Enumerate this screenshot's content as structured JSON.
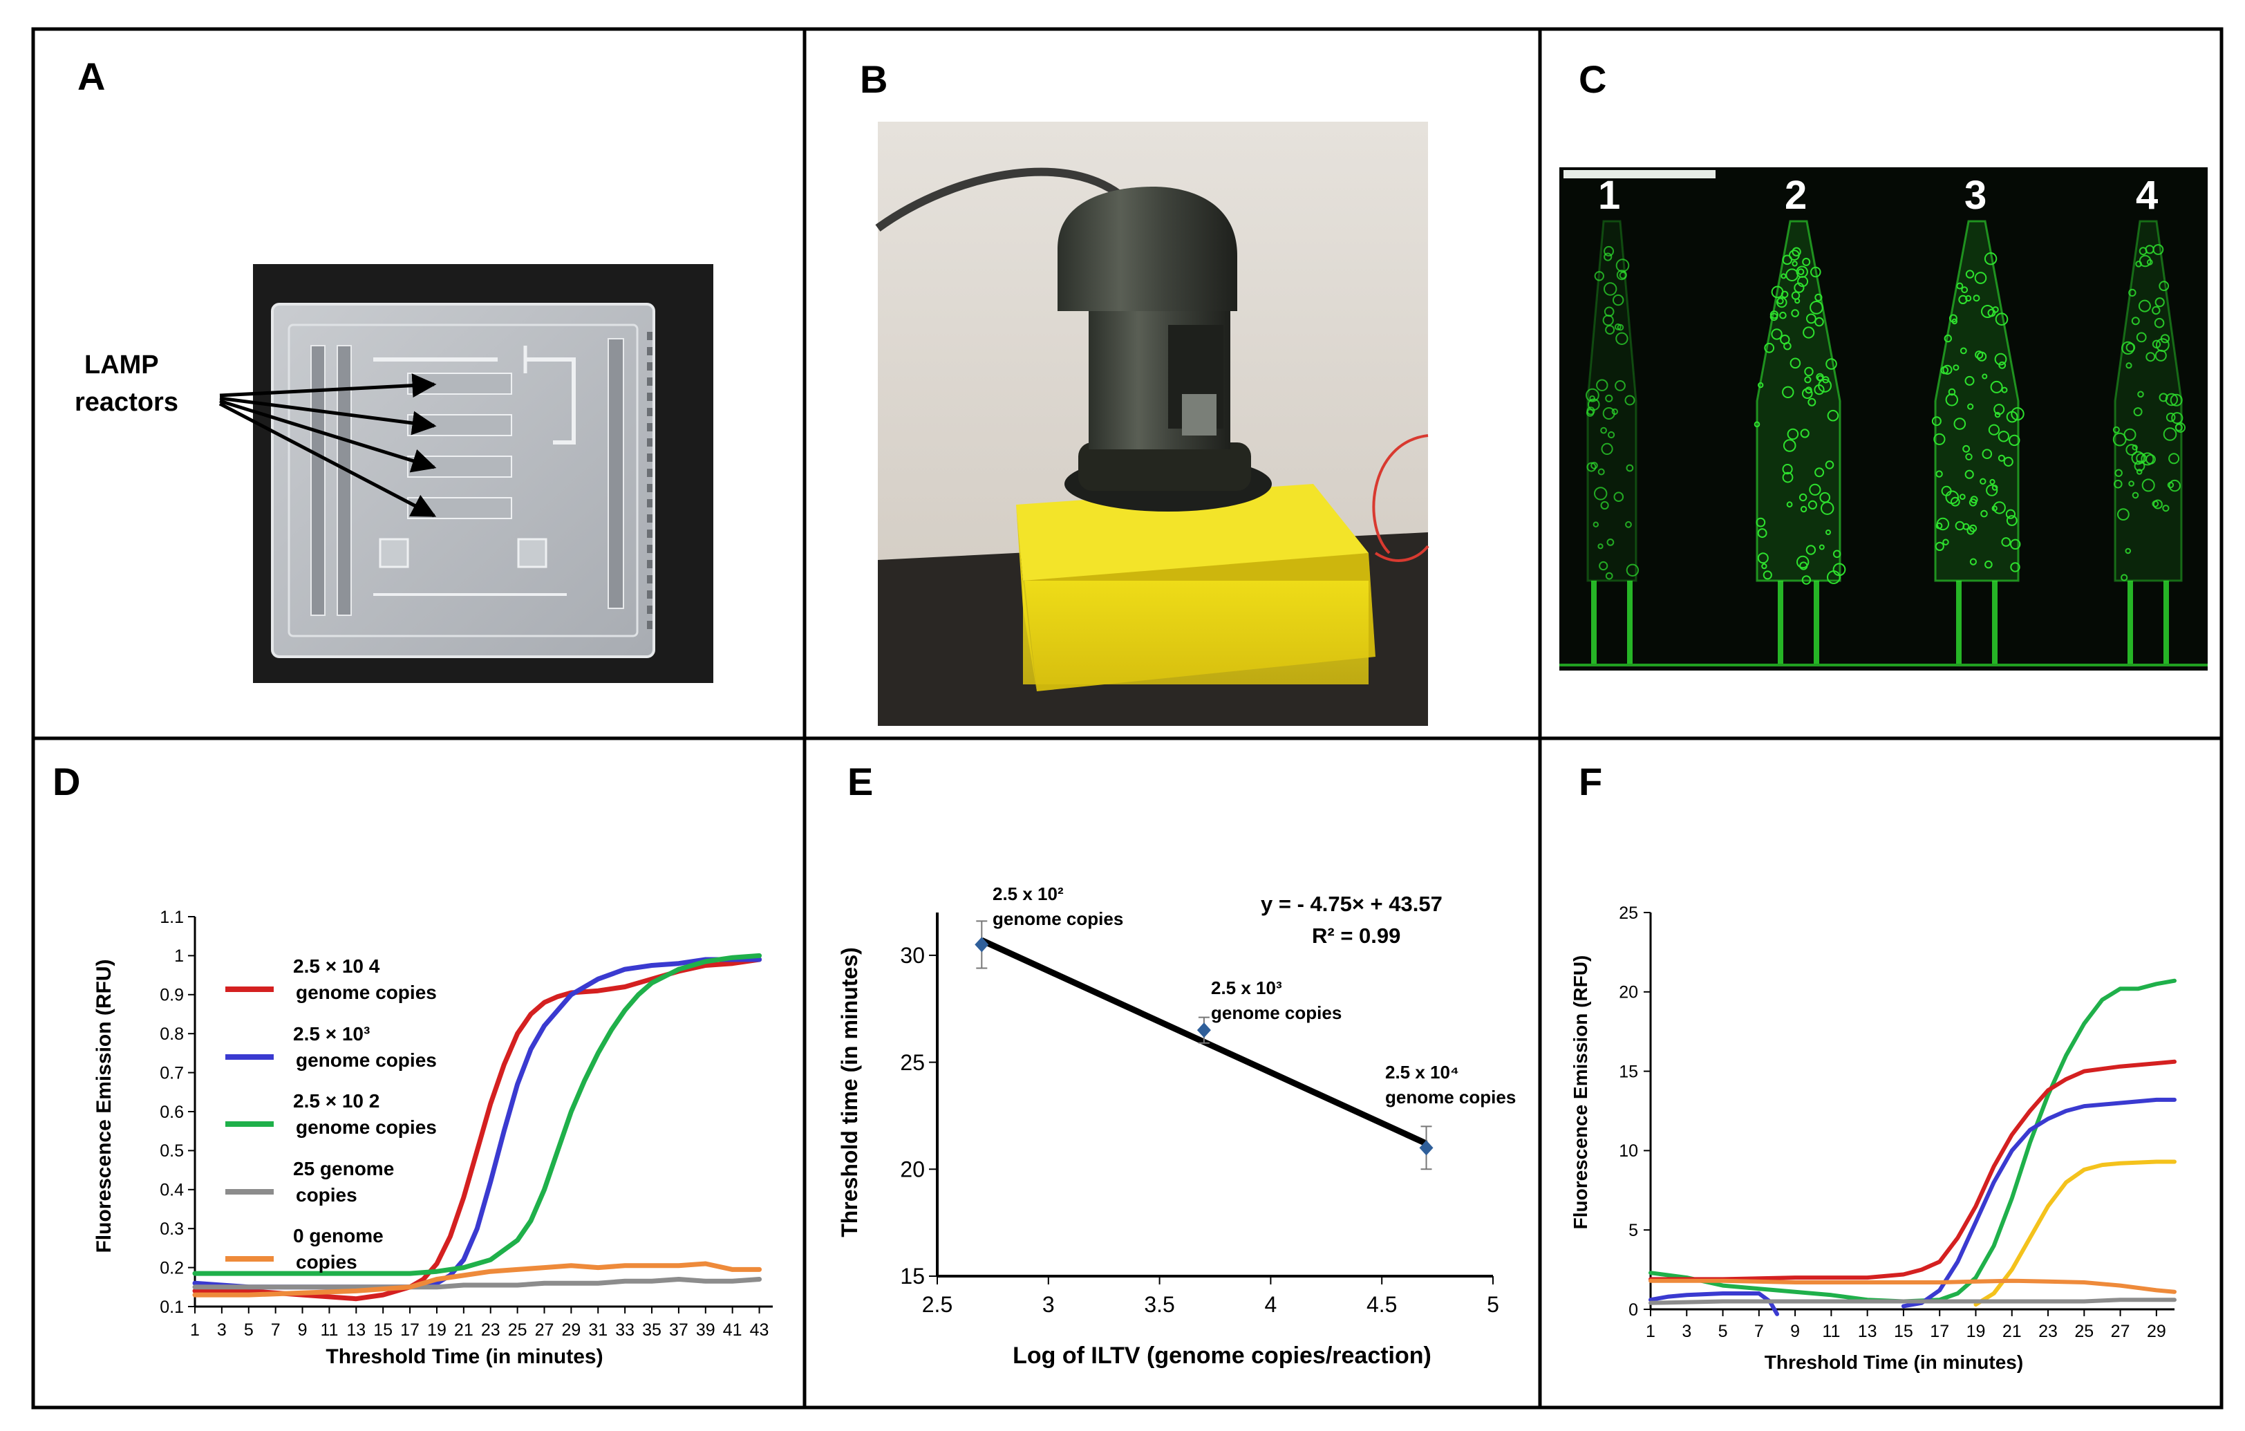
{
  "panels": {
    "A": {
      "letter": "A",
      "callout_line1": "LAMP",
      "callout_line2": "reactors"
    },
    "B": {
      "letter": "B"
    },
    "C": {
      "letter": "C",
      "lanes": [
        "1",
        "2",
        "3",
        "4"
      ]
    },
    "D": {
      "letter": "D"
    },
    "E": {
      "letter": "E"
    },
    "F": {
      "letter": "F"
    }
  },
  "colors": {
    "red": "#d42020",
    "blue": "#3a3ad0",
    "green": "#1fb04a",
    "gray": "#8c8c8c",
    "orange": "#ee8a3a",
    "yellow": "#f4c21c",
    "fluor": "#2ee02e"
  },
  "chart_data": [
    {
      "panel": "D",
      "type": "line",
      "xlabel": "Threshold Time (in minutes)",
      "ylabel": "Fluorescence Emission (RFU)",
      "xlim": [
        1,
        44
      ],
      "ylim": [
        0.1,
        1.1
      ],
      "xticks": [
        1,
        3,
        5,
        7,
        9,
        11,
        13,
        15,
        17,
        19,
        21,
        23,
        25,
        27,
        29,
        31,
        33,
        35,
        37,
        39,
        41,
        43
      ],
      "xtick_labels": [
        "1",
        "3",
        "5",
        "7",
        "9",
        "11",
        "13",
        "15",
        "17",
        "19",
        "21",
        "23",
        "25",
        "27",
        "29",
        "31",
        "33",
        "35",
        "37",
        "39",
        "41",
        "43"
      ],
      "yticks": [
        0.1,
        0.2,
        0.3,
        0.4,
        0.5,
        0.6,
        0.7,
        0.8,
        0.9,
        1,
        1.1
      ],
      "ytick_labels": [
        "0.1",
        "0.2",
        "0.3",
        "0.4",
        "0.5",
        "0.6",
        "0.7",
        "0.8",
        "0.9",
        "1",
        "1.1"
      ],
      "legend": [
        {
          "line1": "2.5 × 10 4",
          "line2": "genome copies",
          "color": "red"
        },
        {
          "line1": "2.5 × 10³",
          "line2": "genome copies",
          "color": "blue"
        },
        {
          "line1": "2.5 × 10 2",
          "line2": "genome copies",
          "color": "green"
        },
        {
          "line1": "25 genome",
          "line2": "copies",
          "color": "gray"
        },
        {
          "line1": "0 genome",
          "line2": "copies",
          "color": "orange"
        }
      ],
      "series": [
        {
          "color": "red",
          "points": [
            [
              1,
              0.14
            ],
            [
              5,
              0.14
            ],
            [
              9,
              0.13
            ],
            [
              13,
              0.12
            ],
            [
              15,
              0.13
            ],
            [
              17,
              0.15
            ],
            [
              18,
              0.17
            ],
            [
              19,
              0.21
            ],
            [
              20,
              0.28
            ],
            [
              21,
              0.38
            ],
            [
              22,
              0.5
            ],
            [
              23,
              0.62
            ],
            [
              24,
              0.72
            ],
            [
              25,
              0.8
            ],
            [
              26,
              0.85
            ],
            [
              27,
              0.88
            ],
            [
              28,
              0.895
            ],
            [
              29,
              0.905
            ],
            [
              31,
              0.91
            ],
            [
              33,
              0.92
            ],
            [
              35,
              0.94
            ],
            [
              37,
              0.96
            ],
            [
              39,
              0.975
            ],
            [
              41,
              0.98
            ],
            [
              43,
              0.99
            ]
          ]
        },
        {
          "color": "blue",
          "points": [
            [
              1,
              0.16
            ],
            [
              5,
              0.15
            ],
            [
              9,
              0.15
            ],
            [
              13,
              0.15
            ],
            [
              17,
              0.15
            ],
            [
              19,
              0.16
            ],
            [
              20,
              0.18
            ],
            [
              21,
              0.22
            ],
            [
              22,
              0.3
            ],
            [
              23,
              0.42
            ],
            [
              24,
              0.55
            ],
            [
              25,
              0.67
            ],
            [
              26,
              0.76
            ],
            [
              27,
              0.82
            ],
            [
              28,
              0.86
            ],
            [
              29,
              0.9
            ],
            [
              31,
              0.94
            ],
            [
              33,
              0.965
            ],
            [
              35,
              0.975
            ],
            [
              37,
              0.98
            ],
            [
              39,
              0.99
            ],
            [
              41,
              0.99
            ],
            [
              43,
              0.99
            ]
          ]
        },
        {
          "color": "green",
          "points": [
            [
              1,
              0.185
            ],
            [
              5,
              0.185
            ],
            [
              9,
              0.185
            ],
            [
              13,
              0.185
            ],
            [
              17,
              0.185
            ],
            [
              19,
              0.19
            ],
            [
              21,
              0.2
            ],
            [
              23,
              0.22
            ],
            [
              25,
              0.27
            ],
            [
              26,
              0.32
            ],
            [
              27,
              0.4
            ],
            [
              28,
              0.5
            ],
            [
              29,
              0.6
            ],
            [
              30,
              0.68
            ],
            [
              31,
              0.75
            ],
            [
              32,
              0.81
            ],
            [
              33,
              0.86
            ],
            [
              34,
              0.9
            ],
            [
              35,
              0.93
            ],
            [
              37,
              0.965
            ],
            [
              39,
              0.985
            ],
            [
              41,
              0.995
            ],
            [
              43,
              1.0
            ]
          ]
        },
        {
          "color": "gray",
          "points": [
            [
              1,
              0.15
            ],
            [
              5,
              0.15
            ],
            [
              9,
              0.15
            ],
            [
              13,
              0.15
            ],
            [
              17,
              0.15
            ],
            [
              19,
              0.15
            ],
            [
              21,
              0.155
            ],
            [
              23,
              0.155
            ],
            [
              25,
              0.155
            ],
            [
              27,
              0.16
            ],
            [
              29,
              0.16
            ],
            [
              31,
              0.16
            ],
            [
              33,
              0.165
            ],
            [
              35,
              0.165
            ],
            [
              37,
              0.17
            ],
            [
              39,
              0.165
            ],
            [
              41,
              0.165
            ],
            [
              43,
              0.17
            ]
          ]
        },
        {
          "color": "orange",
          "points": [
            [
              1,
              0.13
            ],
            [
              5,
              0.13
            ],
            [
              9,
              0.135
            ],
            [
              13,
              0.14
            ],
            [
              17,
              0.15
            ],
            [
              19,
              0.17
            ],
            [
              21,
              0.18
            ],
            [
              23,
              0.19
            ],
            [
              25,
              0.195
            ],
            [
              27,
              0.2
            ],
            [
              29,
              0.205
            ],
            [
              31,
              0.2
            ],
            [
              33,
              0.205
            ],
            [
              35,
              0.205
            ],
            [
              37,
              0.205
            ],
            [
              39,
              0.21
            ],
            [
              41,
              0.195
            ],
            [
              43,
              0.195
            ]
          ]
        }
      ]
    },
    {
      "panel": "E",
      "type": "scatter",
      "xlabel": "Log of ILTV (genome copies/reaction)",
      "ylabel": "Threshold time (in minutes)",
      "xlim": [
        2.5,
        5
      ],
      "ylim": [
        15,
        32
      ],
      "xticks": [
        2.5,
        3,
        3.5,
        4,
        4.5,
        5
      ],
      "xtick_labels": [
        "2.5",
        "3",
        "3.5",
        "4",
        "4.5",
        "5"
      ],
      "yticks": [
        15,
        20,
        25,
        30
      ],
      "ytick_labels": [
        "15",
        "20",
        "25",
        "30"
      ],
      "equation": "y = - 4.75× + 43.57",
      "r_squared": "R² = 0.99",
      "points": [
        {
          "x": 2.7,
          "y": 30.5,
          "err": 1.1,
          "label1": "2.5 x 10²",
          "label2": "genome copies"
        },
        {
          "x": 3.7,
          "y": 26.5,
          "err": 0.6,
          "label1": "2.5 x 10³",
          "label2": "genome copies"
        },
        {
          "x": 4.7,
          "y": 21.0,
          "err": 1.0,
          "label1": "2.5 x 10⁴",
          "label2": "genome copies"
        }
      ],
      "fit": {
        "x": [
          2.7,
          4.7
        ],
        "y": [
          30.7,
          21.2
        ]
      }
    },
    {
      "panel": "F",
      "type": "line",
      "xlabel": "Threshold Time (in minutes)",
      "ylabel": "Fluorescence Emission (RFU)",
      "xlim": [
        1,
        30
      ],
      "ylim": [
        0,
        25
      ],
      "xticks": [
        1,
        3,
        5,
        7,
        9,
        11,
        13,
        15,
        17,
        19,
        21,
        23,
        25,
        27,
        29
      ],
      "xtick_labels": [
        "1",
        "3",
        "5",
        "7",
        "9",
        "11",
        "13",
        "15",
        "17",
        "19",
        "21",
        "23",
        "25",
        "27",
        "29"
      ],
      "yticks": [
        0,
        5,
        10,
        15,
        20,
        25
      ],
      "ytick_labels": [
        "0",
        "5",
        "10",
        "15",
        "20",
        "25"
      ],
      "series": [
        {
          "color": "green",
          "points": [
            [
              1,
              2.3
            ],
            [
              3,
              2.0
            ],
            [
              5,
              1.5
            ],
            [
              7,
              1.3
            ],
            [
              9,
              1.1
            ],
            [
              11,
              0.9
            ],
            [
              13,
              0.6
            ],
            [
              15,
              0.5
            ],
            [
              17,
              0.6
            ],
            [
              18,
              1.0
            ],
            [
              19,
              2.0
            ],
            [
              20,
              4.0
            ],
            [
              21,
              7.0
            ],
            [
              22,
              10.5
            ],
            [
              23,
              13.5
            ],
            [
              24,
              16.0
            ],
            [
              25,
              18.0
            ],
            [
              26,
              19.5
            ],
            [
              27,
              20.2
            ],
            [
              28,
              20.2
            ],
            [
              29,
              20.5
            ],
            [
              30,
              20.7
            ]
          ]
        },
        {
          "color": "red",
          "points": [
            [
              1,
              1.9
            ],
            [
              5,
              1.9
            ],
            [
              9,
              2.0
            ],
            [
              13,
              2.0
            ],
            [
              15,
              2.2
            ],
            [
              16,
              2.5
            ],
            [
              17,
              3.0
            ],
            [
              18,
              4.5
            ],
            [
              19,
              6.5
            ],
            [
              20,
              9.0
            ],
            [
              21,
              11.0
            ],
            [
              22,
              12.5
            ],
            [
              23,
              13.8
            ],
            [
              24,
              14.5
            ],
            [
              25,
              15.0
            ],
            [
              27,
              15.3
            ],
            [
              29,
              15.5
            ],
            [
              30,
              15.6
            ]
          ]
        },
        {
          "color": "blue",
          "points": [
            [
              1,
              0.6
            ],
            [
              2,
              0.8
            ],
            [
              3,
              0.9
            ],
            [
              5,
              1.0
            ],
            [
              7,
              1.0
            ],
            [
              7.6,
              0.5
            ],
            [
              8,
              -0.3
            ]
          ]
        },
        {
          "color": "blue",
          "points": [
            [
              15,
              0.2
            ],
            [
              16,
              0.4
            ],
            [
              17,
              1.2
            ],
            [
              18,
              3.0
            ],
            [
              19,
              5.5
            ],
            [
              20,
              8.0
            ],
            [
              21,
              10.0
            ],
            [
              22,
              11.3
            ],
            [
              23,
              12.0
            ],
            [
              24,
              12.5
            ],
            [
              25,
              12.8
            ],
            [
              27,
              13.0
            ],
            [
              29,
              13.2
            ],
            [
              30,
              13.2
            ]
          ]
        },
        {
          "color": "yellow",
          "points": [
            [
              19,
              0.3
            ],
            [
              20,
              1.0
            ],
            [
              21,
              2.5
            ],
            [
              22,
              4.5
            ],
            [
              23,
              6.5
            ],
            [
              24,
              8.0
            ],
            [
              25,
              8.8
            ],
            [
              26,
              9.1
            ],
            [
              27,
              9.2
            ],
            [
              29,
              9.3
            ],
            [
              30,
              9.3
            ]
          ]
        },
        {
          "color": "orange",
          "points": [
            [
              1,
              1.8
            ],
            [
              5,
              1.8
            ],
            [
              9,
              1.7
            ],
            [
              13,
              1.7
            ],
            [
              17,
              1.7
            ],
            [
              19,
              1.75
            ],
            [
              21,
              1.8
            ],
            [
              23,
              1.75
            ],
            [
              25,
              1.7
            ],
            [
              27,
              1.5
            ],
            [
              29,
              1.2
            ],
            [
              30,
              1.1
            ]
          ]
        },
        {
          "color": "gray",
          "points": [
            [
              1,
              0.4
            ],
            [
              5,
              0.5
            ],
            [
              9,
              0.5
            ],
            [
              13,
              0.5
            ],
            [
              17,
              0.5
            ],
            [
              21,
              0.5
            ],
            [
              25,
              0.5
            ],
            [
              27,
              0.6
            ],
            [
              29,
              0.6
            ],
            [
              30,
              0.6
            ]
          ]
        }
      ]
    }
  ]
}
